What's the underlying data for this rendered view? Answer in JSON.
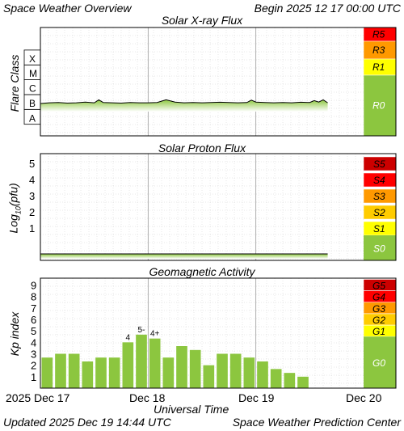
{
  "header": {
    "title": "Space Weather Overview",
    "begin": "Begin 2025 12 17 00:00 UTC"
  },
  "footer": {
    "updated": "Updated 2025 Dec 19 14:44 UTC",
    "credit": "Space Weather Prediction Center"
  },
  "colors": {
    "bar_green": "#8cc63f",
    "noaa_green": "#8cc63f",
    "line": "#000000",
    "grid": "#d0d0d0",
    "scale_colors": [
      "#8cc63f",
      "#ffff00",
      "#ffcc00",
      "#ff9900",
      "#ff0000",
      "#cc0000"
    ]
  },
  "chart_data": [
    {
      "type": "line",
      "title": "Solar X-ray Flux",
      "ylabel": "Flare Class",
      "y_scale": "log",
      "y_ticks": [
        "A",
        "B",
        "C",
        "M",
        "X"
      ],
      "scale_labels": [
        "R0",
        "R1",
        "R3",
        "R5"
      ],
      "x_domain_hours": [
        0,
        72
      ],
      "x": [
        0,
        2,
        4,
        6,
        8,
        10,
        12,
        13,
        14,
        16,
        18,
        20,
        22,
        24,
        26,
        28,
        30,
        32,
        34,
        36,
        38,
        40,
        42,
        44,
        46,
        47,
        48,
        50,
        52,
        54,
        56,
        58,
        60,
        61,
        62,
        63,
        64
      ],
      "y": [
        1.05,
        1.1,
        1.12,
        1.08,
        1.1,
        1.15,
        1.1,
        1.3,
        1.12,
        1.1,
        1.08,
        1.12,
        1.1,
        1.1,
        1.12,
        1.3,
        1.15,
        1.1,
        1.12,
        1.1,
        1.12,
        1.14,
        1.12,
        1.1,
        1.12,
        1.28,
        1.15,
        1.12,
        1.1,
        1.12,
        1.1,
        1.14,
        1.12,
        1.25,
        1.15,
        1.3,
        1.1
      ]
    },
    {
      "type": "line",
      "title": "Solar Proton Flux",
      "ylabel": "Log10(pfu)",
      "y_ticks": [
        "1",
        "2",
        "3",
        "4",
        "5"
      ],
      "ylim": [
        -1,
        5.6
      ],
      "scale_labels": [
        "S0",
        "S1",
        "S2",
        "S3",
        "S4",
        "S5"
      ],
      "x": [
        0,
        8,
        16,
        24,
        32,
        40,
        48,
        56,
        64
      ],
      "y": [
        -0.6,
        -0.6,
        -0.6,
        -0.6,
        -0.6,
        -0.6,
        -0.6,
        -0.6,
        -0.6
      ]
    },
    {
      "type": "bar",
      "title": "Geomagnetic Activity",
      "ylabel": "Kp index",
      "y_ticks": [
        "1",
        "2",
        "3",
        "4",
        "5",
        "6",
        "7",
        "8",
        "9"
      ],
      "ylim": [
        0,
        9.6
      ],
      "scale_labels": [
        "G0",
        "G1",
        "G2",
        "G3",
        "G4",
        "G5"
      ],
      "values": [
        2.67,
        3.0,
        3.0,
        2.33,
        2.67,
        2.67,
        4.0,
        4.67,
        4.33,
        2.67,
        3.67,
        3.33,
        2.0,
        3.0,
        3.0,
        2.67,
        2.33,
        1.67,
        1.33,
        1.0
      ],
      "labels": {
        "6": "4",
        "7": "5-",
        "8": "4+"
      },
      "xlabel": "Universal Time",
      "x_tick_labels": [
        "2025 Dec 17",
        "Dec 18",
        "Dec 19",
        "Dec 20"
      ]
    }
  ]
}
